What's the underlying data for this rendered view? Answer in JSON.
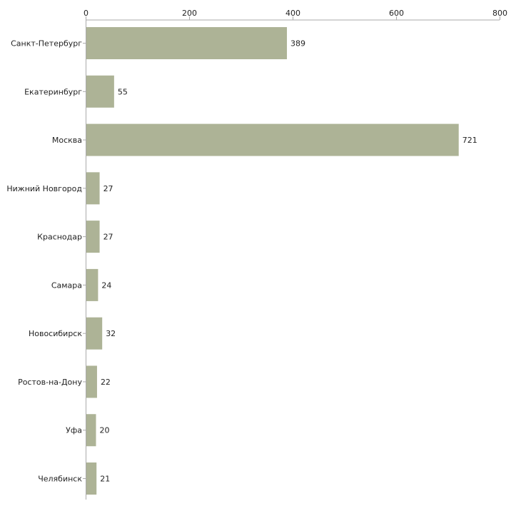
{
  "chart_data": {
    "type": "bar",
    "orientation": "horizontal",
    "title": "",
    "xlabel": "",
    "ylabel": "",
    "xlim": [
      0,
      800
    ],
    "ticks": [
      0,
      200,
      400,
      600,
      800
    ],
    "tick_labels": [
      "0",
      "200",
      "400",
      "600",
      "800"
    ],
    "categories": [
      "Санкт-Петербург",
      "Екатеринбург",
      "Москва",
      "Нижний Новгород",
      "Краснодар",
      "Самара",
      "Новосибирск",
      "Ростов-на-Дону",
      "Уфа",
      "Челябинск"
    ],
    "values": [
      389,
      55,
      721,
      27,
      27,
      24,
      32,
      22,
      20,
      21
    ],
    "value_labels": [
      "389",
      "55",
      "721",
      "27",
      "27",
      "24",
      "32",
      "22",
      "20",
      "21"
    ],
    "bar_color": "#adb396",
    "axis_color": "#aaaaaa",
    "grid": false,
    "legend": "none"
  }
}
